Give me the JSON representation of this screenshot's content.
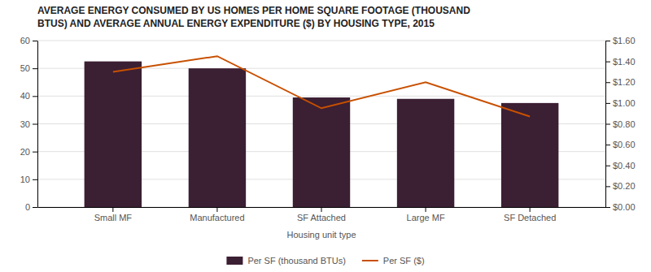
{
  "chart_data": {
    "type": "bar",
    "title": "AVERAGE ENERGY CONSUMED BY US HOMES PER HOME SQUARE FOOTAGE (THOUSAND\nBTUS) AND AVERAGE ANNUAL ENERGY EXPENDITURE ($) BY HOUSING TYPE, 2015",
    "xlabel": "Housing unit type",
    "categories": [
      "Small MF",
      "Manufactured",
      "SF Attached",
      "Large MF",
      "SF Detached"
    ],
    "series": [
      {
        "name": "Per SF (thousand BTUs)",
        "type": "bar",
        "color": "#3b1f33",
        "values": [
          52.5,
          50.0,
          39.5,
          39.0,
          37.5
        ]
      },
      {
        "name": "Per SF ($)",
        "type": "line",
        "axis": "y2",
        "color": "#c85000",
        "values": [
          1.3,
          1.45,
          0.95,
          1.2,
          0.87
        ]
      }
    ],
    "ylim": [
      0,
      60
    ],
    "yticks": [
      0,
      10,
      20,
      30,
      40,
      50,
      60
    ],
    "y2lim": [
      0.0,
      1.6
    ],
    "y2ticks": [
      {
        "value": 0.0,
        "label": "$0.00"
      },
      {
        "value": 0.2,
        "label": "$0.20"
      },
      {
        "value": 0.4,
        "label": "$0.40"
      },
      {
        "value": 0.6,
        "label": "$0.60"
      },
      {
        "value": 0.8,
        "label": "$0.80"
      },
      {
        "value": 1.0,
        "label": "$1.00"
      },
      {
        "value": 1.2,
        "label": "$1.20"
      },
      {
        "value": 1.4,
        "label": "$1.40"
      },
      {
        "value": 1.6,
        "label": "$1.60"
      }
    ],
    "grid": true,
    "legend": "bottom"
  }
}
